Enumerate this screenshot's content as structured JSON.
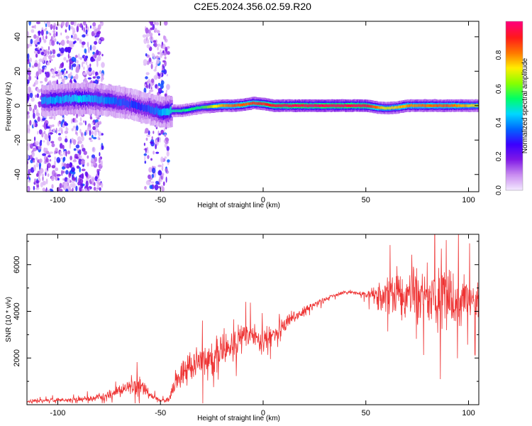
{
  "title": "C2E5.2024.356.02.59.R20",
  "chart_data": [
    {
      "type": "heatmap",
      "xlabel": "Height of straight line (km)",
      "ylabel": "Frequency (Hz)",
      "xlim": [
        -115,
        105
      ],
      "ylim": [
        -50,
        49
      ],
      "x_ticks": [
        -100,
        -50,
        0,
        50,
        100
      ],
      "y_ticks": [
        -40,
        -20,
        0,
        20,
        40
      ],
      "colorbar": {
        "label": "Normalized spectral amplitude",
        "range": [
          0,
          1
        ],
        "ticks": [
          0.0,
          0.2,
          0.4,
          0.6,
          0.8
        ],
        "colormap": [
          "#f3e8ff",
          "#c98cf0",
          "#7f18e6",
          "#3a00ff",
          "#0066ff",
          "#00d8ff",
          "#00ff66",
          "#88ff00",
          "#ffee00",
          "#ff7700",
          "#ff1a1a",
          "#ff0077"
        ]
      },
      "ridge_frequency": {
        "x": [
          -105,
          -95,
          -85,
          -75,
          -70,
          -65,
          -60,
          -55,
          -50,
          -45,
          -40,
          -35,
          -30,
          -25,
          -20,
          -15,
          -10,
          -5,
          0,
          5,
          20,
          40,
          50,
          55,
          60,
          65,
          70,
          80,
          90,
          100,
          105
        ],
        "freq": [
          3,
          4,
          4,
          3,
          2,
          1,
          -1,
          -2,
          -4,
          -3,
          -3,
          -2,
          -1,
          -0.5,
          0,
          0,
          0.5,
          1.5,
          1,
          0,
          0,
          0,
          0,
          -1,
          -1.5,
          -1,
          0,
          0,
          0,
          0,
          0
        ]
      },
      "ridge_amplitude": {
        "x": [
          -105,
          -90,
          -80,
          -70,
          -60,
          -50,
          -45,
          -30,
          -20,
          -10,
          0,
          10,
          20,
          40,
          50,
          60,
          70,
          90,
          105
        ],
        "amp": [
          0.4,
          0.45,
          0.4,
          0.35,
          0.3,
          0.4,
          0.5,
          0.55,
          0.8,
          0.85,
          0.9,
          0.95,
          0.97,
          0.97,
          0.95,
          0.7,
          0.8,
          0.85,
          0.7
        ]
      },
      "noise_bands_km": [
        [
          -115,
          -78
        ],
        [
          -58,
          -46
        ]
      ]
    },
    {
      "type": "line",
      "xlabel": "Height of straight line (km)",
      "ylabel": "SNR (10 * v/v)",
      "xlim": [
        -115,
        105
      ],
      "ylim": [
        0,
        7300
      ],
      "x_ticks": [
        -100,
        -50,
        0,
        50,
        100
      ],
      "y_ticks": [
        2000,
        4000,
        6000
      ],
      "color": "#ee3333",
      "series": [
        {
          "x": [
            -115,
            -100,
            -90,
            -80,
            -75,
            -70,
            -65,
            -62,
            -60,
            -58,
            -55,
            -52,
            -50,
            -46,
            -44,
            -40,
            -35,
            -30,
            -25,
            -20,
            -15,
            -10,
            -5,
            0,
            5,
            10,
            15,
            20,
            25,
            30,
            35,
            40,
            45,
            50,
            55,
            60,
            65,
            70,
            75,
            80,
            85,
            90,
            95,
            100,
            105
          ],
          "mean": [
            150,
            200,
            230,
            320,
            450,
            600,
            750,
            900,
            850,
            650,
            420,
            250,
            180,
            220,
            650,
            1300,
            1700,
            1900,
            2100,
            2300,
            2500,
            2800,
            3000,
            2700,
            3100,
            3400,
            3700,
            4000,
            4300,
            4500,
            4700,
            4800,
            4800,
            4700,
            4700,
            4700,
            4700,
            4650,
            4650,
            4600,
            4600,
            4600,
            4550,
            4500,
            4500
          ],
          "amp": [
            100,
            120,
            150,
            200,
            250,
            300,
            420,
            700,
            600,
            400,
            200,
            120,
            80,
            150,
            400,
            700,
            900,
            1000,
            900,
            900,
            850,
            800,
            700,
            700,
            600,
            500,
            400,
            300,
            200,
            150,
            120,
            100,
            100,
            200,
            700,
            1100,
            1300,
            1400,
            1500,
            1600,
            1600,
            1500,
            1500,
            1400,
            1300
          ]
        }
      ]
    }
  ]
}
